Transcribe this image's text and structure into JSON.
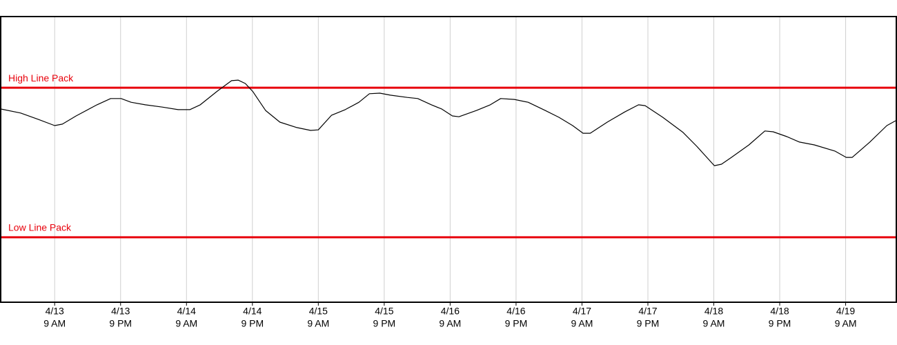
{
  "chart_data": {
    "type": "line",
    "xlim": [
      -0.7,
      162.1
    ],
    "ylim": [
      0,
      100
    ],
    "xticks": [
      {
        "value": 9,
        "label": [
          "4/13",
          "9 AM"
        ]
      },
      {
        "value": 21,
        "label": [
          "4/13",
          "9 PM"
        ]
      },
      {
        "value": 33,
        "label": [
          "4/14",
          "9 AM"
        ]
      },
      {
        "value": 45,
        "label": [
          "4/14",
          "9 PM"
        ]
      },
      {
        "value": 57,
        "label": [
          "4/15",
          "9 AM"
        ]
      },
      {
        "value": 69,
        "label": [
          "4/15",
          "9 PM"
        ]
      },
      {
        "value": 81,
        "label": [
          "4/16",
          "9 AM"
        ]
      },
      {
        "value": 93,
        "label": [
          "4/16",
          "9 PM"
        ]
      },
      {
        "value": 105,
        "label": [
          "4/17",
          "9 AM"
        ]
      },
      {
        "value": 117,
        "label": [
          "4/17",
          "9 PM"
        ]
      },
      {
        "value": 129,
        "label": [
          "4/18",
          "9 AM"
        ]
      },
      {
        "value": 141,
        "label": [
          "4/18",
          "9 PM"
        ]
      },
      {
        "value": 153,
        "label": [
          "4/19",
          "9 AM"
        ]
      }
    ],
    "grid": true,
    "reference_lines": [
      {
        "label": "High Line Pack",
        "value": 75.2,
        "color": "#e8000b"
      },
      {
        "label": "Low Line Pack",
        "value": 22.6,
        "color": "#e8000b"
      }
    ],
    "series": [
      {
        "color": "#000000",
        "x": [
          -0.7,
          2.8,
          6.0,
          9,
          10.4,
          12.9,
          16.7,
          19.2,
          21.1,
          22.9,
          25.5,
          28.6,
          31.5,
          33.6,
          35.5,
          38.6,
          41.2,
          42.4,
          43.7,
          45.1,
          47.4,
          50.0,
          53.1,
          55.6,
          57.0,
          59.4,
          61.9,
          64.4,
          66.3,
          68.2,
          70.1,
          73.2,
          75.1,
          77.6,
          79.5,
          81.4,
          82.6,
          85.8,
          88.3,
          90.2,
          92.7,
          95.2,
          98.3,
          100.8,
          103.3,
          105.2,
          106.5,
          109.6,
          112.8,
          115.3,
          116.5,
          119.7,
          123.4,
          125.9,
          129.1,
          130.4,
          132.2,
          135.4,
          138.3,
          139.8,
          142.3,
          144.6,
          147.3,
          151.1,
          153.1,
          154.2,
          157.4,
          160.5,
          162.1
        ],
        "values": [
          67.7,
          66.3,
          64.1,
          61.9,
          62.4,
          65.3,
          69.2,
          71.4,
          71.4,
          70.1,
          69.2,
          68.4,
          67.5,
          67.5,
          69.2,
          74.0,
          77.7,
          77.9,
          76.7,
          73.8,
          67.2,
          63.1,
          61.2,
          60.2,
          60.4,
          65.5,
          67.5,
          70.1,
          73.1,
          73.3,
          72.6,
          71.8,
          71.4,
          69.2,
          67.7,
          65.3,
          65.0,
          67.2,
          69.2,
          71.4,
          71.1,
          70.1,
          67.2,
          64.8,
          61.9,
          59.2,
          59.2,
          63.1,
          66.7,
          69.2,
          68.9,
          64.8,
          59.5,
          54.6,
          47.8,
          48.3,
          50.7,
          55.1,
          60.0,
          59.7,
          58.0,
          56.1,
          55.1,
          52.9,
          50.7,
          50.7,
          56.1,
          61.9,
          63.6
        ]
      }
    ]
  }
}
